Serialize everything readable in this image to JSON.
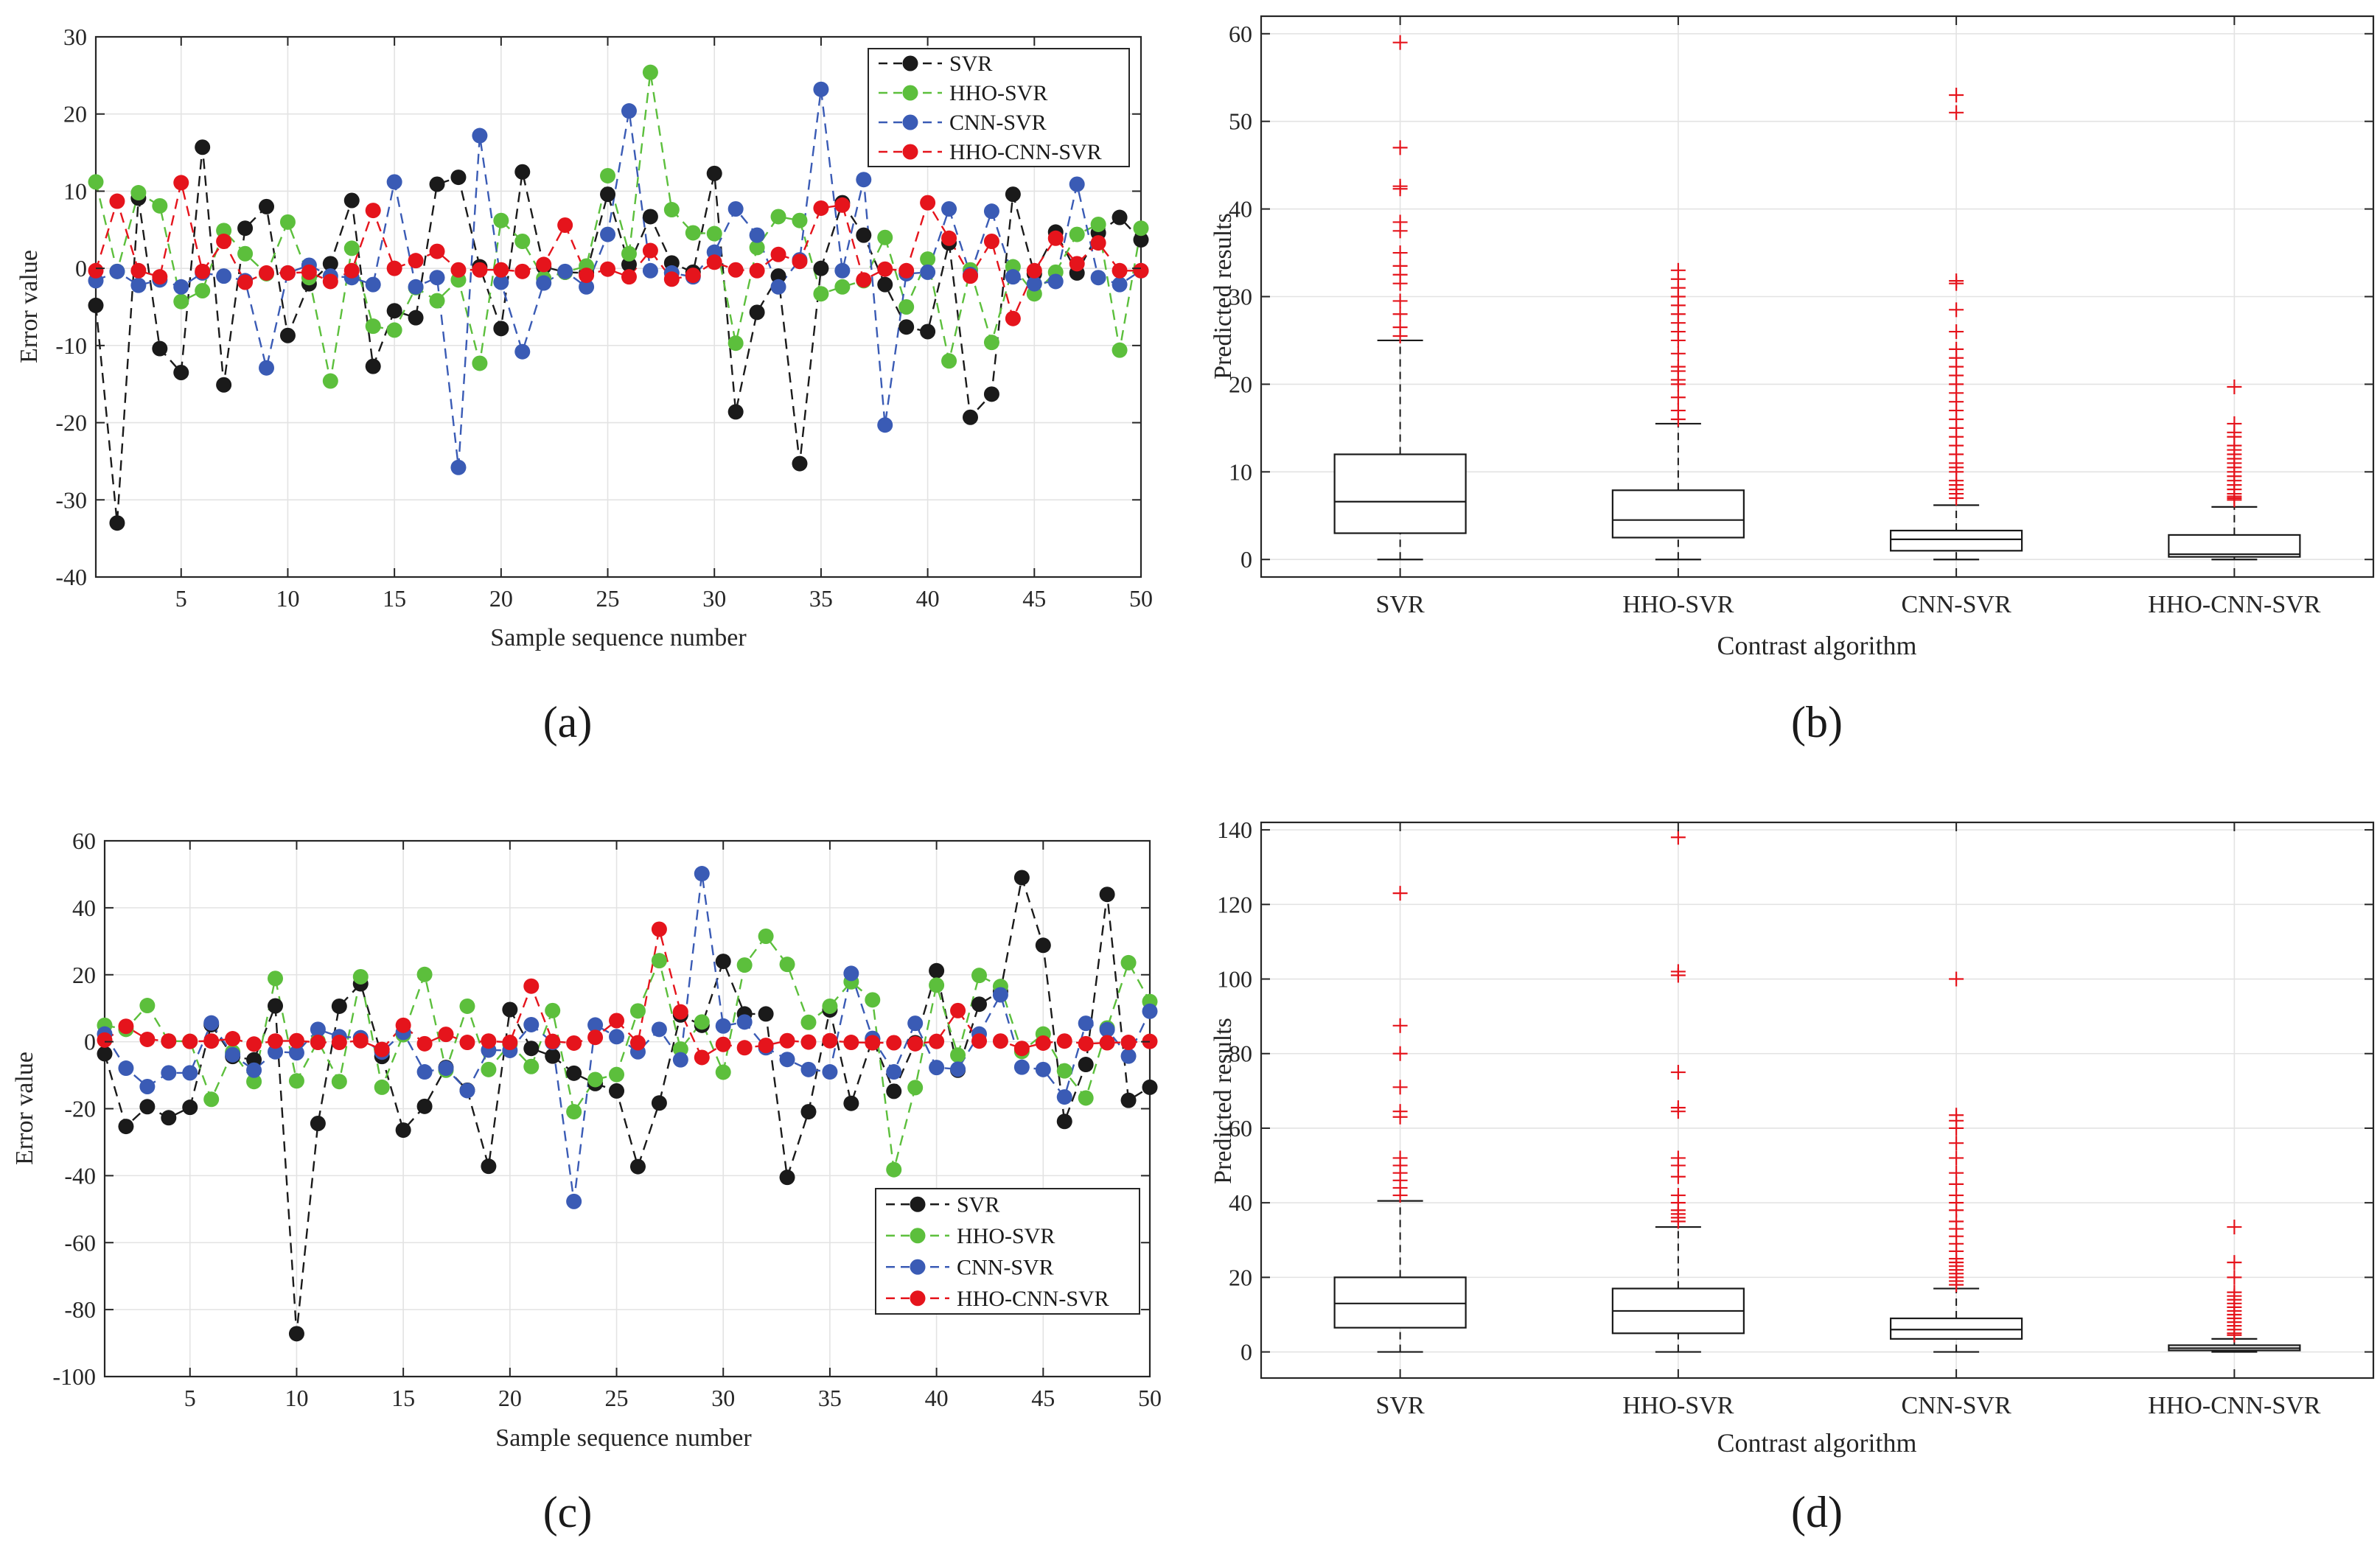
{
  "chart_data": [
    {
      "type": "line",
      "panel_label": "(a)",
      "xlabel": "Sample sequence number",
      "ylabel": "Error value",
      "xlim": [
        1,
        50
      ],
      "ylim": [
        -40,
        30
      ],
      "xticks": [
        5,
        10,
        15,
        20,
        25,
        30,
        35,
        40,
        45,
        50
      ],
      "yticks": [
        -40,
        -30,
        -20,
        -10,
        0,
        10,
        20,
        30
      ],
      "grid": true,
      "legend_position": "top-right",
      "x": [
        1,
        2,
        3,
        4,
        5,
        6,
        7,
        8,
        9,
        10,
        11,
        12,
        13,
        14,
        15,
        16,
        17,
        18,
        19,
        20,
        21,
        22,
        23,
        24,
        25,
        26,
        27,
        28,
        29,
        30,
        31,
        32,
        33,
        34,
        35,
        36,
        37,
        38,
        39,
        40,
        41,
        42,
        43,
        44,
        45,
        46,
        47,
        48,
        49,
        50
      ],
      "series": [
        {
          "name": "SVR",
          "color": "#1a1a1a",
          "values": [
            -4.8,
            -33,
            9.1,
            -10.4,
            -13.5,
            15.7,
            -15.1,
            5.2,
            8,
            -8.7,
            -2,
            0.6,
            8.8,
            -12.7,
            -5.5,
            -6.4,
            10.9,
            11.8,
            0.2,
            -7.8,
            12.5,
            0.2,
            -0.5,
            -0.6,
            9.6,
            0.5,
            6.7,
            0.7,
            -0.5,
            12.3,
            -18.6,
            -5.7,
            -1,
            -25.3,
            0,
            8.5,
            4.3,
            -2.1,
            -7.6,
            -8.2,
            3.3,
            -19.3,
            -16.3,
            9.6,
            -0.7,
            4.7,
            -0.6,
            4.6,
            6.6,
            3.7
          ]
        },
        {
          "name": "HHO-SVR",
          "color": "#5cbf3c",
          "values": [
            11.2,
            -0.4,
            9.8,
            8.1,
            -4.3,
            -2.9,
            4.9,
            1.9,
            -0.7,
            6,
            -1.2,
            -14.6,
            2.6,
            -7.5,
            -8,
            -2.5,
            -4.2,
            -1.5,
            -12.3,
            6.2,
            3.5,
            -1.3,
            -0.5,
            0.3,
            12,
            1.9,
            25.4,
            7.6,
            4.6,
            4.5,
            -9.7,
            2.7,
            6.7,
            6.2,
            -3.3,
            -2.4,
            -1.6,
            4,
            -5,
            1.2,
            -12,
            -0.2,
            -9.6,
            0.2,
            -3.3,
            -0.5,
            4.4,
            5.7,
            -10.6,
            5.2
          ]
        },
        {
          "name": "CNN-SVR",
          "color": "#3a5bb5",
          "values": [
            -1.6,
            -0.4,
            -2.2,
            -1.5,
            -2.4,
            -0.6,
            -1,
            -1.6,
            -12.9,
            -0.6,
            0.4,
            -1,
            -1.2,
            -2.1,
            11.2,
            -2.4,
            -1.2,
            -25.8,
            17.2,
            -1.8,
            -10.8,
            -1.9,
            -0.4,
            -2.4,
            4.4,
            20.4,
            -0.3,
            -0.6,
            -1.1,
            2.1,
            7.7,
            4.3,
            -2.4,
            1.1,
            23.2,
            -0.3,
            11.5,
            -20.3,
            -0.7,
            -0.5,
            7.7,
            -0.8,
            7.4,
            -1.1,
            -2,
            -1.7,
            10.9,
            -1.2,
            -2.1,
            -0.3
          ]
        },
        {
          "name": "HHO-CNN-SVR",
          "color": "#e5141c",
          "values": [
            -0.3,
            8.7,
            -0.3,
            -1.1,
            11.1,
            -0.4,
            3.5,
            -1.8,
            -0.6,
            -0.6,
            -0.5,
            -1.7,
            -0.3,
            7.5,
            0,
            1,
            2.2,
            -0.2,
            -0.2,
            -0.2,
            -0.4,
            0.5,
            5.6,
            -0.9,
            -0.1,
            -1.1,
            2.3,
            -1.4,
            -0.9,
            0.8,
            -0.2,
            -0.3,
            1.8,
            0.9,
            7.8,
            8.2,
            -1.5,
            -0.1,
            -0.3,
            8.5,
            3.9,
            -1,
            3.5,
            -6.5,
            -0.3,
            3.9,
            0.6,
            3.3,
            -0.3,
            -0.3
          ]
        }
      ]
    },
    {
      "type": "box",
      "panel_label": "(b)",
      "xlabel": "Contrast algorithm",
      "ylabel": "Predicted results",
      "ylim": [
        -2,
        62
      ],
      "yticks": [
        0,
        10,
        20,
        30,
        40,
        50,
        60
      ],
      "grid": true,
      "categories": [
        "SVR",
        "HHO-SVR",
        "CNN-SVR",
        "HHO-CNN-SVR"
      ],
      "boxes": [
        {
          "min": 0,
          "q1": 3,
          "median": 6.6,
          "q3": 12,
          "max": 25,
          "outliers": [
            25.5,
            26.5,
            28,
            29.5,
            31.5,
            32.5,
            33.5,
            35,
            37.5,
            38.5,
            42.3,
            42.6,
            47,
            59
          ]
        },
        {
          "min": 0,
          "q1": 2.5,
          "median": 4.5,
          "q3": 7.9,
          "max": 15.5,
          "outliers": [
            16,
            17,
            18.5,
            20,
            20.5,
            21.5,
            22,
            23.5,
            25,
            26,
            27,
            28,
            29,
            30,
            31,
            32,
            33
          ]
        },
        {
          "min": 0,
          "q1": 1,
          "median": 2.3,
          "q3": 3.3,
          "max": 6.2,
          "outliers": [
            7,
            7.5,
            8,
            8.5,
            9,
            10,
            10.5,
            11,
            12,
            13,
            14,
            15,
            16,
            17,
            18,
            19,
            20,
            21,
            22,
            23,
            24,
            26,
            28.5,
            31.5,
            31.8,
            51,
            53
          ]
        },
        {
          "min": 0,
          "q1": 0.3,
          "median": 0.6,
          "q3": 2.8,
          "max": 6,
          "outliers": [
            6.8,
            7,
            7.2,
            7.5,
            8,
            8.5,
            9,
            9.5,
            10,
            10.5,
            11,
            11.5,
            12,
            12.5,
            13,
            14,
            14.5,
            15.5,
            19.7
          ]
        }
      ]
    },
    {
      "type": "line",
      "panel_label": "(c)",
      "xlabel": "Sample sequence number",
      "ylabel": "Error value",
      "xlim": [
        1,
        50
      ],
      "ylim": [
        -100,
        60
      ],
      "xticks": [
        5,
        10,
        15,
        20,
        25,
        30,
        35,
        40,
        45,
        50
      ],
      "yticks": [
        -100,
        -80,
        -60,
        -40,
        -20,
        0,
        20,
        40,
        60
      ],
      "grid": true,
      "legend_position": "bottom-right",
      "x": [
        1,
        2,
        3,
        4,
        5,
        6,
        7,
        8,
        9,
        10,
        11,
        12,
        13,
        14,
        15,
        16,
        17,
        18,
        19,
        20,
        21,
        22,
        23,
        24,
        25,
        26,
        27,
        28,
        29,
        30,
        31,
        32,
        33,
        34,
        35,
        36,
        37,
        38,
        39,
        40,
        41,
        42,
        43,
        44,
        45,
        46,
        47,
        48,
        49,
        50
      ],
      "series": [
        {
          "name": "SVR",
          "color": "#1a1a1a",
          "values": [
            -3.6,
            -25.3,
            -19.4,
            -22.7,
            -19.6,
            5.1,
            -4.4,
            -5.4,
            10.7,
            -87.2,
            -24.4,
            10.6,
            17.3,
            -4.4,
            -26.4,
            -19.3,
            -7.7,
            -14.5,
            -37.2,
            9.6,
            -2,
            -4.3,
            -9.4,
            -12.5,
            -14.7,
            -37.3,
            -18.3,
            8,
            4.9,
            24,
            8.3,
            8.3,
            -40.5,
            -20.9,
            9.5,
            -18.4,
            0.8,
            -14.8,
            -0.3,
            21.2,
            -8.5,
            11.2,
            15,
            49,
            28.8,
            -23.8,
            -6.8,
            44,
            -17.5,
            -13.6
          ]
        },
        {
          "name": "HHO-SVR",
          "color": "#5cbf3c",
          "values": [
            4.9,
            3.7,
            10.8,
            0.2,
            0.1,
            -17.2,
            -3.1,
            -11.9,
            18.9,
            -11.7,
            0.2,
            -11.9,
            19.4,
            -13.6,
            2.1,
            20.1,
            -8.5,
            10.6,
            -8.3,
            -0.7,
            -7.4,
            9.3,
            -20.9,
            -11.3,
            -9.8,
            9.2,
            24.2,
            -2.2,
            5.9,
            -9.1,
            22.9,
            31.5,
            23.1,
            5.8,
            10.6,
            17.9,
            12.5,
            -38.2,
            -13.7,
            16.9,
            -4,
            19.8,
            16.5,
            -2.9,
            2.3,
            -8.7,
            -16.8,
            4.1,
            23.6,
            12
          ]
        },
        {
          "name": "CNN-SVR",
          "color": "#3a5bb5",
          "values": [
            2.3,
            -7.9,
            -13.4,
            -9.3,
            -9.3,
            5.6,
            -3.9,
            -8.5,
            -3,
            -3.3,
            3.7,
            1.5,
            1.2,
            -3.1,
            2.8,
            -9,
            -7.9,
            -14.6,
            -2.5,
            -2.6,
            5.1,
            -0.2,
            -47.7,
            5,
            1.5,
            -3,
            3.7,
            -5.4,
            50.2,
            4.7,
            5.9,
            -1.8,
            -5.3,
            -8.3,
            -9,
            20.4,
            1,
            -9,
            5.5,
            -7.7,
            -8.2,
            2.3,
            14,
            -7.6,
            -8.3,
            -16.5,
            5.5,
            3.6,
            -4.3,
            9.1
          ]
        },
        {
          "name": "HHO-CNN-SVR",
          "color": "#e5141c",
          "values": [
            0.5,
            4.6,
            0.7,
            0.2,
            0.1,
            0.2,
            0.9,
            -0.7,
            0.2,
            0.3,
            -0.2,
            -0.2,
            0.3,
            -2.3,
            4.9,
            -0.6,
            2.2,
            -0.2,
            0.2,
            -0.2,
            16.6,
            0.1,
            -0.4,
            1.3,
            6.3,
            -0.3,
            33.6,
            8.9,
            -4.7,
            -0.8,
            -1.8,
            -1.1,
            0.3,
            -0.1,
            0.3,
            -0.2,
            -0.3,
            -0.3,
            -0.6,
            0.1,
            9.3,
            0.2,
            0.2,
            -2,
            -0.4,
            0.2,
            -0.6,
            -0.3,
            -0.2,
            0.1
          ]
        }
      ]
    },
    {
      "type": "box",
      "panel_label": "(d)",
      "xlabel": "Contrast algorithm",
      "ylabel": "Predicted results",
      "ylim": [
        -7,
        142
      ],
      "yticks": [
        0,
        20,
        40,
        60,
        80,
        100,
        120,
        140
      ],
      "grid": true,
      "categories": [
        "SVR",
        "HHO-SVR",
        "CNN-SVR",
        "HHO-CNN-SVR"
      ],
      "boxes": [
        {
          "min": 0,
          "q1": 6.5,
          "median": 13,
          "q3": 20,
          "max": 40.5,
          "outliers": [
            42,
            44,
            46,
            48,
            50,
            52,
            63,
            64.5,
            71,
            80,
            87.5,
            123
          ]
        },
        {
          "min": 0,
          "q1": 5,
          "median": 11,
          "q3": 17,
          "max": 33.5,
          "outliers": [
            35,
            36,
            37,
            38,
            40,
            42,
            47,
            50,
            52,
            64.5,
            65.5,
            75,
            101,
            102,
            138
          ]
        },
        {
          "min": 0,
          "q1": 3.5,
          "median": 6,
          "q3": 9,
          "max": 17,
          "outliers": [
            18,
            19,
            20,
            21,
            22,
            23,
            24,
            25,
            27,
            29,
            31,
            33,
            35,
            38,
            40,
            42,
            45,
            48,
            52,
            56,
            60,
            62,
            63.5,
            100
          ]
        },
        {
          "min": 0,
          "q1": 0.4,
          "median": 1,
          "q3": 1.8,
          "max": 3.5,
          "outliers": [
            4.5,
            5,
            6,
            7,
            8,
            9,
            10,
            11,
            12,
            13,
            14,
            15,
            16,
            20,
            24,
            33.5
          ]
        }
      ]
    }
  ]
}
